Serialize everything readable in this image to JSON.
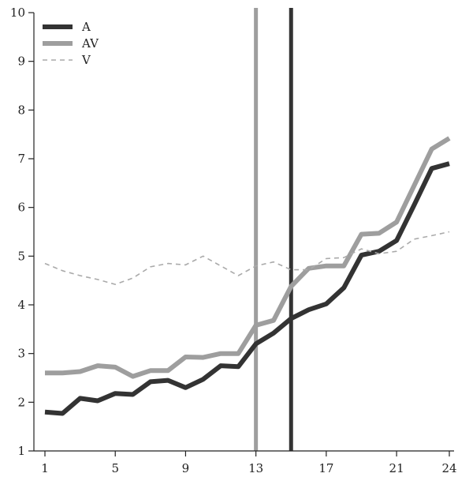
{
  "chart_data": {
    "type": "line",
    "title": "",
    "xlabel": "",
    "ylabel": "",
    "xlim": [
      1,
      24
    ],
    "ylim": [
      1,
      10
    ],
    "xticks": [
      1,
      5,
      9,
      13,
      17,
      21,
      24
    ],
    "yticks": [
      1,
      2,
      3,
      4,
      5,
      6,
      7,
      8,
      9,
      10
    ],
    "grid": false,
    "legend": "top-left",
    "x": [
      1,
      2,
      3,
      4,
      5,
      6,
      7,
      8,
      9,
      10,
      11,
      12,
      13,
      14,
      15,
      16,
      17,
      18,
      19,
      20,
      21,
      22,
      23,
      24
    ],
    "series": [
      {
        "name": "A",
        "color": "#333333",
        "style": "solid-thick",
        "values": [
          1.8,
          1.77,
          2.08,
          2.03,
          2.18,
          2.16,
          2.42,
          2.45,
          2.3,
          2.47,
          2.75,
          2.73,
          3.2,
          3.42,
          3.72,
          3.9,
          4.02,
          4.35,
          5.02,
          5.1,
          5.32,
          6.05,
          6.8,
          6.9
        ]
      },
      {
        "name": "AV",
        "color": "#9e9e9e",
        "style": "solid-thick",
        "values": [
          2.6,
          2.6,
          2.63,
          2.75,
          2.72,
          2.53,
          2.65,
          2.65,
          2.93,
          2.92,
          3.0,
          3.0,
          3.58,
          3.68,
          4.38,
          4.75,
          4.8,
          4.8,
          5.45,
          5.47,
          5.7,
          6.45,
          7.2,
          7.42
        ]
      },
      {
        "name": "V",
        "color": "#aaaaaa",
        "style": "dashed",
        "values": [
          4.85,
          4.7,
          4.6,
          4.52,
          4.42,
          4.55,
          4.78,
          4.85,
          4.82,
          5.0,
          4.8,
          4.6,
          4.8,
          4.88,
          4.72,
          4.72,
          4.95,
          4.97,
          5.15,
          5.05,
          5.1,
          5.35,
          5.42,
          5.5
        ]
      }
    ],
    "reference_lines": [
      {
        "axis": "x",
        "value": 13,
        "color": "#9e9e9e"
      },
      {
        "axis": "x",
        "value": 15,
        "color": "#333333"
      }
    ]
  }
}
